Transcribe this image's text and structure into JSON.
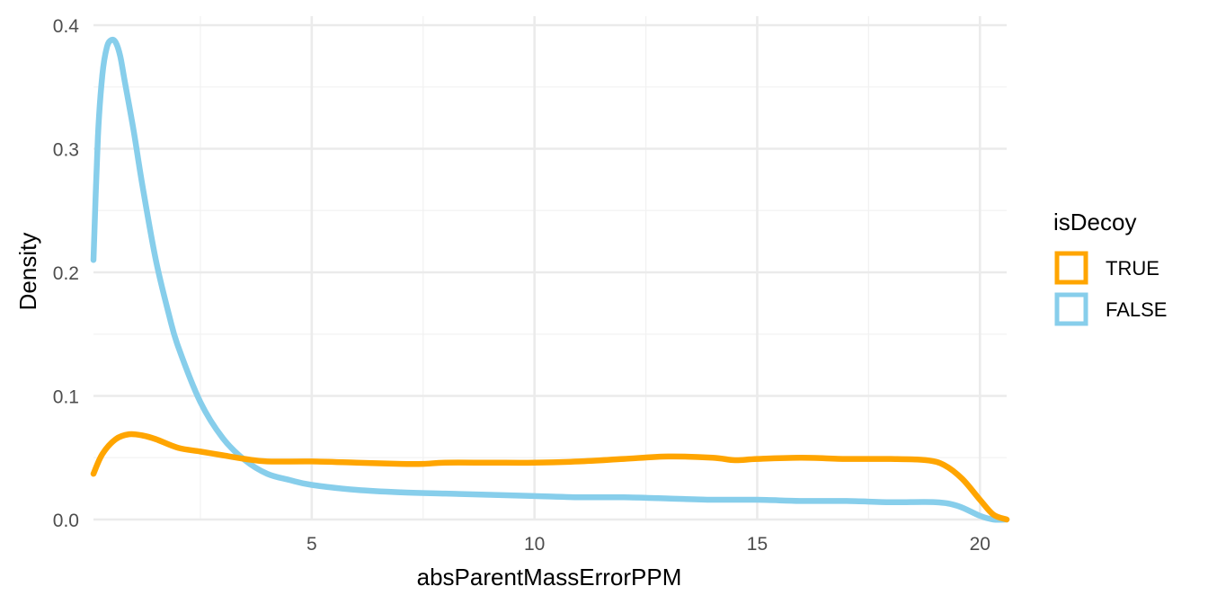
{
  "chart_data": {
    "type": "line",
    "title": "",
    "xlabel": "absParentMassErrorPPM",
    "ylabel": "Density",
    "xlim": [
      0.1,
      20.6
    ],
    "ylim": [
      0,
      0.4
    ],
    "x_ticks": [
      5,
      10,
      15,
      20
    ],
    "x_tick_labels": [
      "5",
      "10",
      "15",
      "20"
    ],
    "y_ticks": [
      0,
      0.1,
      0.2,
      0.3,
      0.4
    ],
    "y_tick_labels": [
      "0.0",
      "0.1",
      "0.2",
      "0.3",
      "0.4"
    ],
    "grid": true,
    "legend": {
      "title": "isDecoy",
      "placement": "right"
    },
    "series": [
      {
        "name": "TRUE",
        "color": "#FFA500",
        "points": [
          [
            0.1,
            0.037
          ],
          [
            0.3,
            0.053
          ],
          [
            0.6,
            0.065
          ],
          [
            0.9,
            0.069
          ],
          [
            1.2,
            0.068
          ],
          [
            1.5,
            0.065
          ],
          [
            2.0,
            0.058
          ],
          [
            2.5,
            0.055
          ],
          [
            3.0,
            0.052
          ],
          [
            3.5,
            0.049
          ],
          [
            4.0,
            0.047
          ],
          [
            5.0,
            0.047
          ],
          [
            6.0,
            0.046
          ],
          [
            7.0,
            0.045
          ],
          [
            7.5,
            0.045
          ],
          [
            8.0,
            0.046
          ],
          [
            9.0,
            0.046
          ],
          [
            10.0,
            0.046
          ],
          [
            11.0,
            0.047
          ],
          [
            12.0,
            0.049
          ],
          [
            13.0,
            0.051
          ],
          [
            14.0,
            0.05
          ],
          [
            14.5,
            0.048
          ],
          [
            15.0,
            0.049
          ],
          [
            16.0,
            0.05
          ],
          [
            17.0,
            0.049
          ],
          [
            18.0,
            0.049
          ],
          [
            18.8,
            0.048
          ],
          [
            19.2,
            0.044
          ],
          [
            19.6,
            0.033
          ],
          [
            20.0,
            0.016
          ],
          [
            20.3,
            0.004
          ],
          [
            20.6,
            0.0
          ]
        ]
      },
      {
        "name": "FALSE",
        "color": "#87CEEB",
        "points": [
          [
            0.1,
            0.21
          ],
          [
            0.2,
            0.31
          ],
          [
            0.3,
            0.36
          ],
          [
            0.4,
            0.382
          ],
          [
            0.5,
            0.388
          ],
          [
            0.6,
            0.386
          ],
          [
            0.7,
            0.375
          ],
          [
            0.8,
            0.355
          ],
          [
            1.0,
            0.315
          ],
          [
            1.2,
            0.27
          ],
          [
            1.5,
            0.21
          ],
          [
            1.8,
            0.165
          ],
          [
            2.0,
            0.14
          ],
          [
            2.5,
            0.095
          ],
          [
            3.0,
            0.066
          ],
          [
            3.5,
            0.048
          ],
          [
            4.0,
            0.037
          ],
          [
            4.5,
            0.032
          ],
          [
            5.0,
            0.028
          ],
          [
            6.0,
            0.024
          ],
          [
            7.0,
            0.022
          ],
          [
            8.0,
            0.021
          ],
          [
            9.0,
            0.02
          ],
          [
            10.0,
            0.019
          ],
          [
            11.0,
            0.018
          ],
          [
            12.0,
            0.018
          ],
          [
            13.0,
            0.017
          ],
          [
            14.0,
            0.016
          ],
          [
            15.0,
            0.016
          ],
          [
            16.0,
            0.015
          ],
          [
            17.0,
            0.015
          ],
          [
            18.0,
            0.014
          ],
          [
            19.0,
            0.014
          ],
          [
            19.5,
            0.011
          ],
          [
            20.0,
            0.003
          ],
          [
            20.3,
            0.0
          ],
          [
            20.6,
            0.0
          ]
        ]
      }
    ]
  }
}
